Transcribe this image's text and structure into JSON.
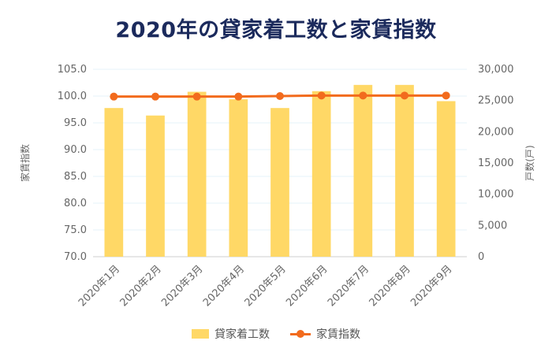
{
  "chart_data": {
    "type": "bar",
    "title": "2020年の貸家着工数と家賃指数",
    "categories": [
      "2020年1月",
      "2020年2月",
      "2020年3月",
      "2020年4月",
      "2020年5月",
      "2020年6月",
      "2020年7月",
      "2020年8月",
      "2020年9月"
    ],
    "series": [
      {
        "name": "貸家着工数",
        "kind": "bar",
        "axis": "right",
        "color": "#ffd866",
        "values": [
          23800,
          22600,
          26400,
          25200,
          23800,
          26500,
          27500,
          27500,
          24900
        ]
      },
      {
        "name": "家賃指数",
        "kind": "line",
        "axis": "left",
        "color": "#f26b1d",
        "values": [
          99.9,
          99.9,
          99.9,
          99.9,
          100.0,
          100.1,
          100.1,
          100.1,
          100.1
        ]
      }
    ],
    "ylabel": "家賃指数",
    "y2label": "戸数(戸)",
    "ylim": [
      70,
      105
    ],
    "y2lim": [
      0,
      30000
    ],
    "yticks": [
      "70.0",
      "75.0",
      "80.0",
      "85.0",
      "90.0",
      "95.0",
      "100.0",
      "105.0"
    ],
    "y2ticks": [
      "0",
      "5,000",
      "10,000",
      "15,000",
      "20,000",
      "25,000",
      "30,000"
    ],
    "legend_position": "bottom",
    "grid": true
  }
}
